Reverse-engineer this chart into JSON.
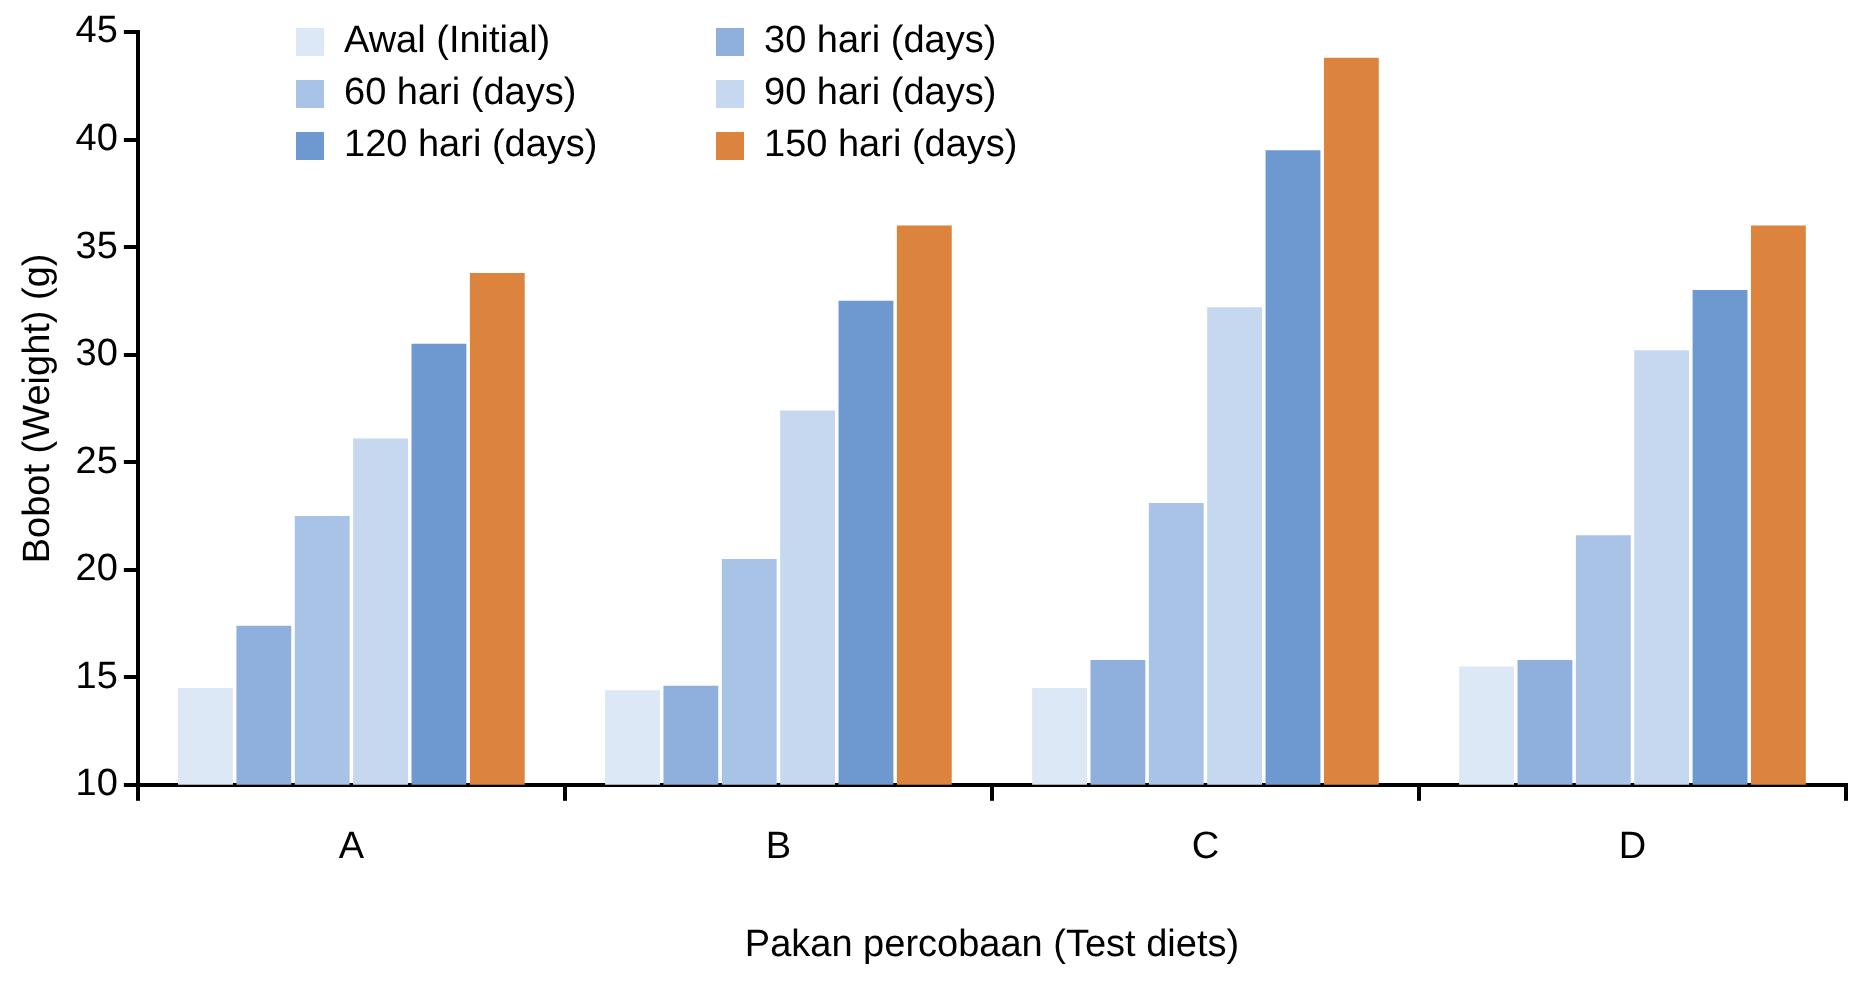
{
  "chart_data": {
    "type": "bar",
    "xlabel": "Pakan percobaan (Test diets)",
    "ylabel": "Bobot (Weight) (g)",
    "categories": [
      "A",
      "B",
      "C",
      "D"
    ],
    "series": [
      {
        "name": "Awal (Initial)",
        "color": "#dce8f6",
        "values": [
          14.5,
          14.4,
          14.5,
          15.5
        ]
      },
      {
        "name": "30 hari (days)",
        "color": "#8fb0dc",
        "values": [
          17.4,
          14.6,
          15.8,
          15.8
        ]
      },
      {
        "name": "60 hari (days)",
        "color": "#a9c3e6",
        "values": [
          22.5,
          20.5,
          23.1,
          21.6
        ]
      },
      {
        "name": "90 hari (days)",
        "color": "#c6d8ef",
        "values": [
          26.1,
          27.4,
          32.2,
          30.2
        ]
      },
      {
        "name": "120 hari (days)",
        "color": "#6d98d0",
        "values": [
          30.5,
          32.5,
          39.5,
          33.0
        ]
      },
      {
        "name": "150 hari (days)",
        "color": "#dc843e",
        "values": [
          33.8,
          36.0,
          43.8,
          36.0
        ]
      }
    ],
    "ylim": [
      10,
      45
    ],
    "yticks": [
      10,
      15,
      20,
      25,
      30,
      35,
      40,
      45
    ],
    "grid": false,
    "legend": "top left"
  }
}
